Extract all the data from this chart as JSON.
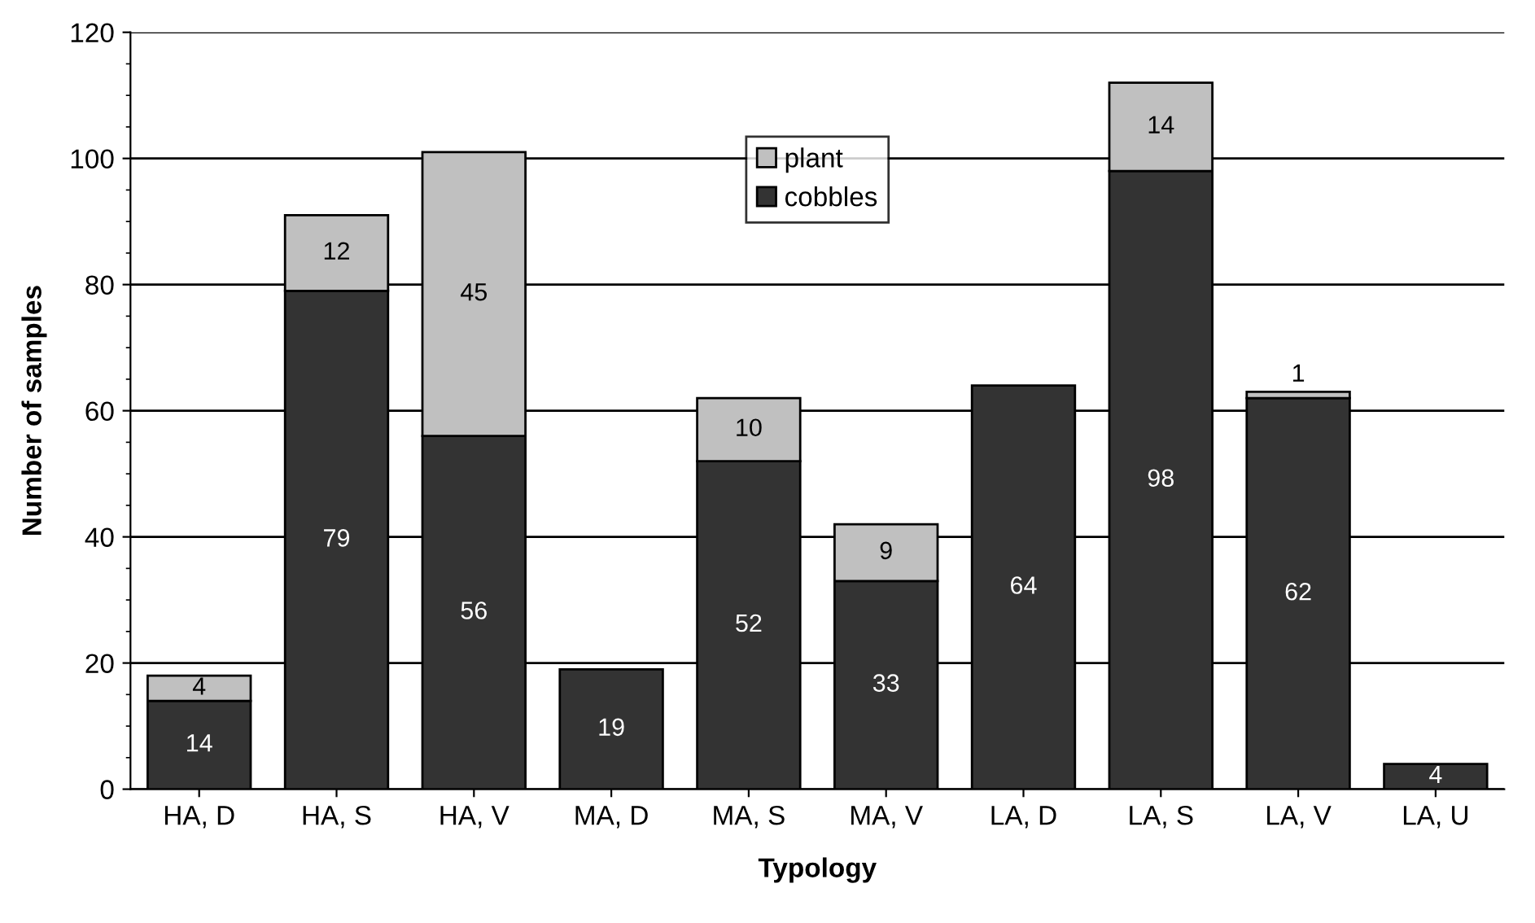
{
  "chart_data": {
    "type": "bar",
    "stacked": true,
    "xlabel": "Typology",
    "ylabel": "Number of samples",
    "categories": [
      "HA, D",
      "HA, S",
      "HA, V",
      "MA, D",
      "MA, S",
      "MA, V",
      "LA, D",
      "LA, S",
      "LA, V",
      "LA, U"
    ],
    "series": [
      {
        "name": "cobbles",
        "color": "#333333",
        "values": [
          14,
          79,
          56,
          19,
          52,
          33,
          64,
          98,
          62,
          4
        ]
      },
      {
        "name": "plant",
        "color": "#c0c0c0",
        "values": [
          4,
          12,
          45,
          null,
          10,
          9,
          null,
          14,
          1,
          null
        ]
      }
    ],
    "ylim": [
      0,
      120
    ],
    "yticks": [
      0,
      20,
      40,
      60,
      80,
      100,
      120
    ],
    "grid": "y",
    "legend": "top",
    "data_labels": true
  }
}
